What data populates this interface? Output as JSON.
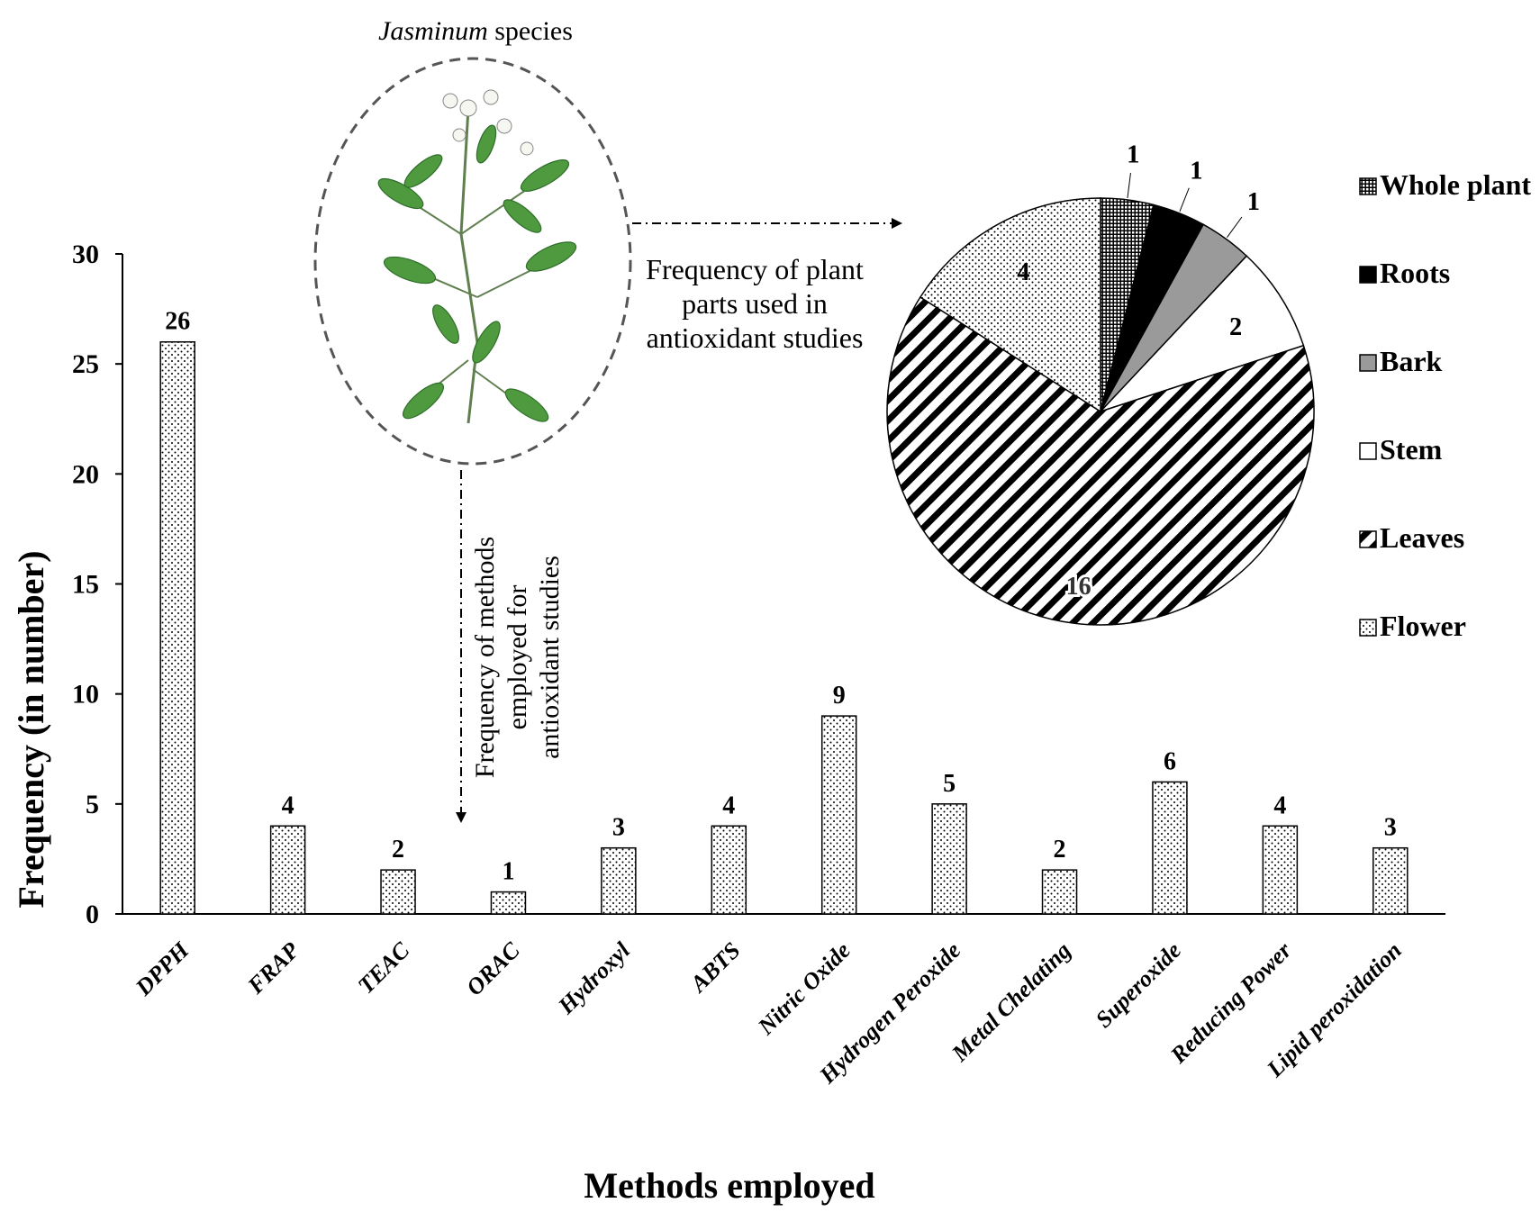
{
  "chart_data": [
    {
      "type": "bar",
      "xlabel": "Methods employed",
      "ylabel": "Frequency (in number)",
      "ylim": [
        0,
        30
      ],
      "yticks": [
        0,
        5,
        10,
        15,
        20,
        25,
        30
      ],
      "categories": [
        "DPPH",
        "FRAP",
        "TEAC",
        "ORAC",
        "Hydroxyl",
        "ABTS",
        "Nitric Oxide",
        "Hydrogen Peroxide",
        "Metal Chelating",
        "Superoxide",
        "Reducing Power",
        "Lipid peroxidation"
      ],
      "values": [
        26,
        4,
        2,
        1,
        3,
        4,
        9,
        5,
        2,
        6,
        4,
        3
      ],
      "grid": false,
      "bar_pattern": "dotted",
      "annotation": [
        "Frequency of methods",
        "employed for",
        "antioxidant studies"
      ]
    },
    {
      "type": "pie",
      "annotation": [
        "Frequency of plant",
        "parts used in",
        "antioxidant studies"
      ],
      "legend_position": "right",
      "slices": [
        {
          "label": "Whole plant",
          "value": 1,
          "pattern": "checker"
        },
        {
          "label": "Roots",
          "value": 1,
          "pattern": "solid-black"
        },
        {
          "label": "Bark",
          "value": 1,
          "pattern": "solid-gray"
        },
        {
          "label": "Stem",
          "value": 2,
          "pattern": "white"
        },
        {
          "label": "Leaves",
          "value": 16,
          "pattern": "diagonal-stripes"
        },
        {
          "label": "Flower",
          "value": 4,
          "pattern": "dotted"
        }
      ]
    }
  ],
  "illustration": {
    "title_italic": "Jasminum",
    "title_rest": " species",
    "icon": "jasmine-plant-icon"
  },
  "colors": {
    "axis": "#000000",
    "bark": "#9a9a9a",
    "leaf": "#4f9a3f",
    "leaf_dark": "#2e6e2a"
  }
}
